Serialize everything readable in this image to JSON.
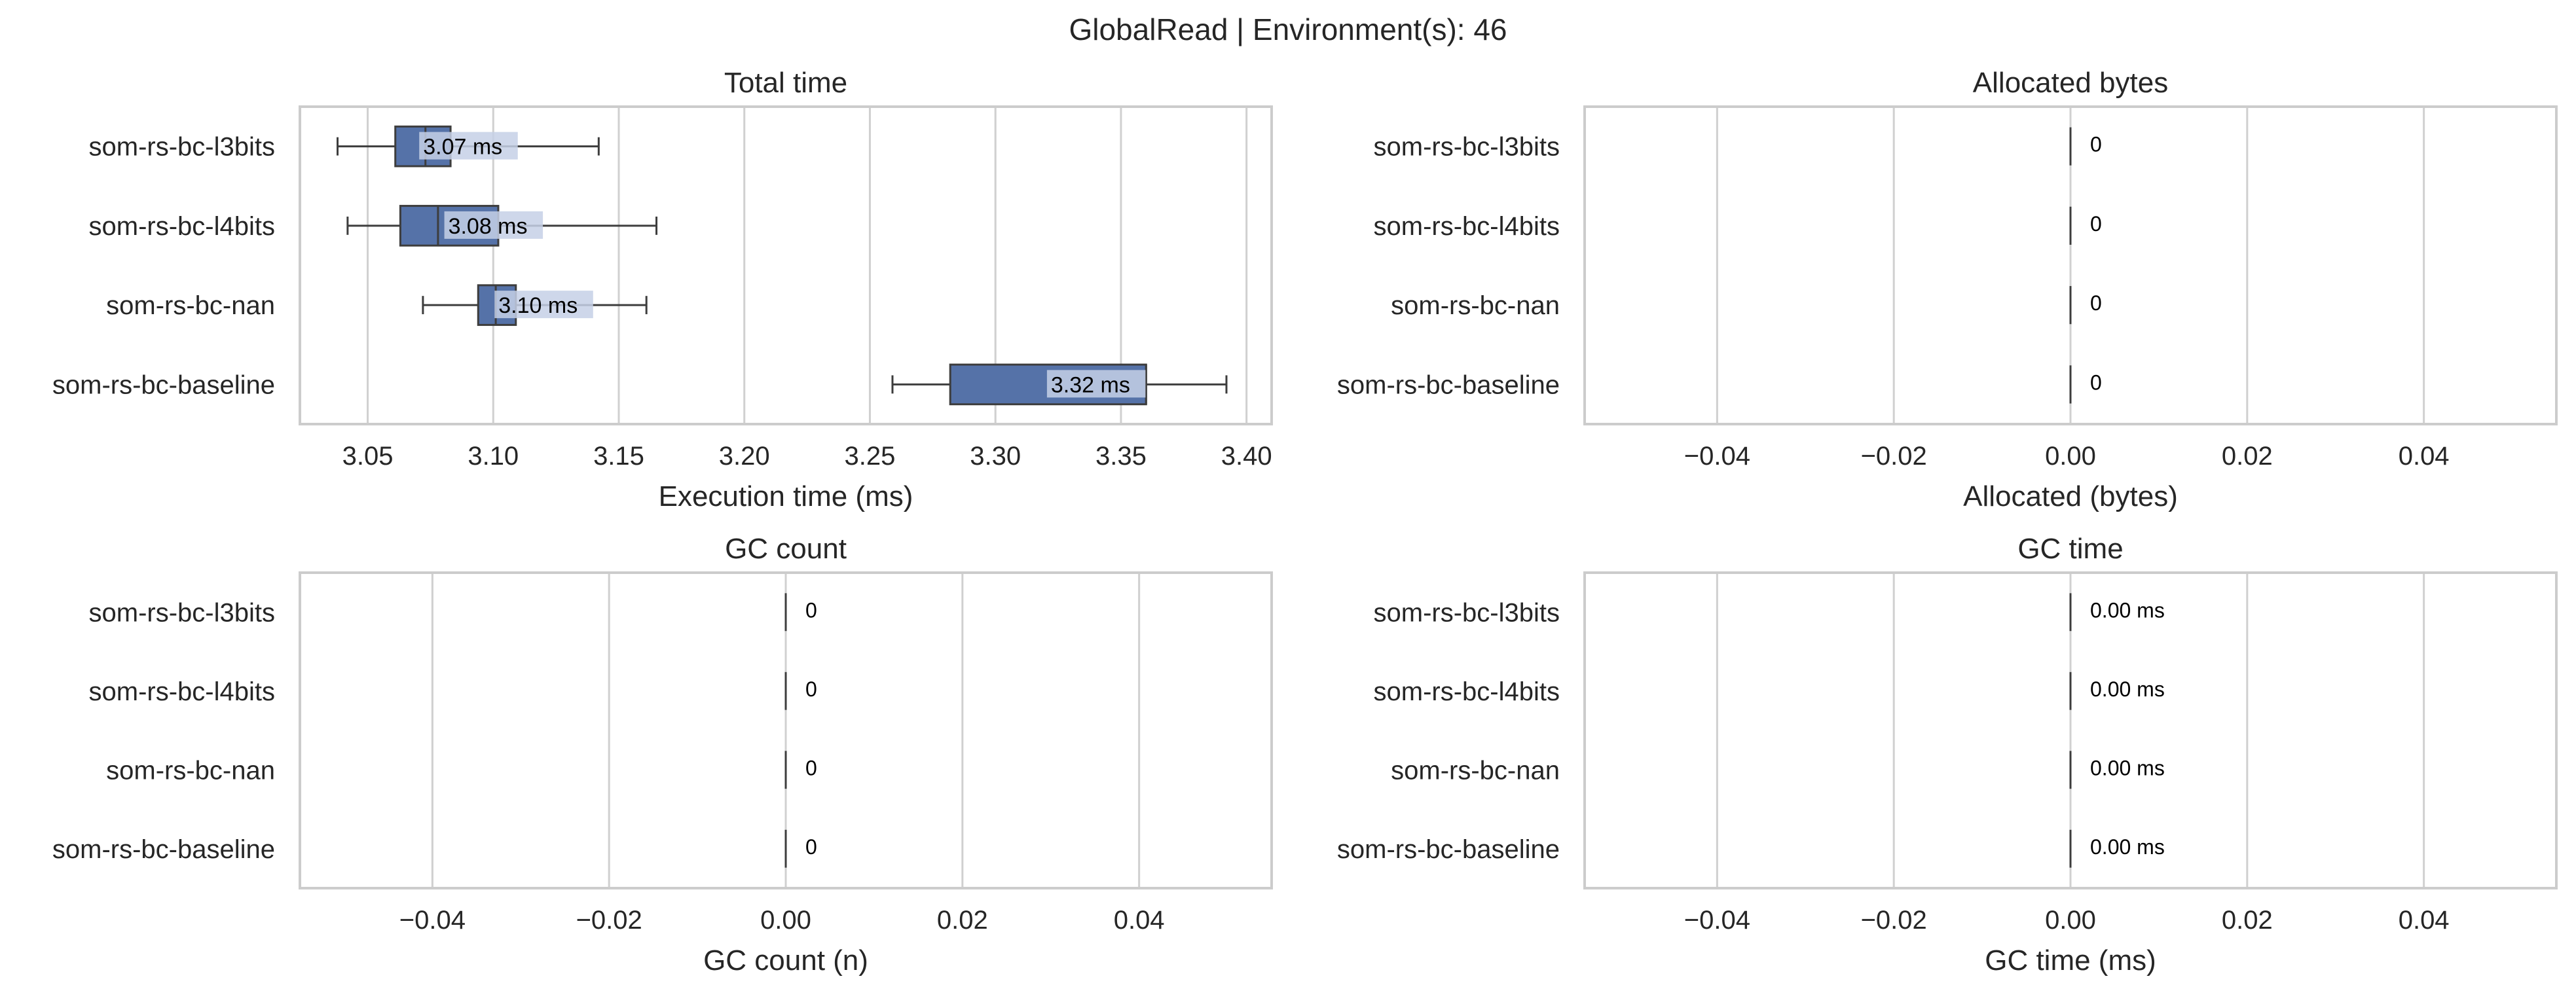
{
  "suptitle": "GlobalRead | Environment(s): 46",
  "colors": {
    "box": "#5572a8",
    "mean_label_bg": "#c5d0e6",
    "grid": "#d0d0d0",
    "frame": "#cccccc",
    "text": "#262626"
  },
  "chart_data": [
    {
      "type": "box",
      "title": "Total time",
      "xlabel": "Execution time (ms)",
      "categories": [
        "som-rs-bc-l3bits",
        "som-rs-bc-l4bits",
        "som-rs-bc-nan",
        "som-rs-bc-baseline"
      ],
      "xlim": [
        3.023,
        3.41
      ],
      "xticks": [
        3.05,
        3.1,
        3.15,
        3.2,
        3.25,
        3.3,
        3.35,
        3.4
      ],
      "xtick_labels": [
        "3.05",
        "3.10",
        "3.15",
        "3.20",
        "3.25",
        "3.30",
        "3.35",
        "3.40"
      ],
      "grid": "x",
      "boxes": [
        {
          "whisker_low": 3.038,
          "q1": 3.061,
          "median": 3.073,
          "q3": 3.083,
          "whisker_high": 3.142,
          "mean": 3.07,
          "label": "3.07 ms"
        },
        {
          "whisker_low": 3.042,
          "q1": 3.063,
          "median": 3.078,
          "q3": 3.102,
          "whisker_high": 3.165,
          "mean": 3.08,
          "label": "3.08 ms"
        },
        {
          "whisker_low": 3.072,
          "q1": 3.094,
          "median": 3.101,
          "q3": 3.109,
          "whisker_high": 3.161,
          "mean": 3.1,
          "label": "3.10 ms"
        },
        {
          "whisker_low": 3.259,
          "q1": 3.282,
          "median": 3.36,
          "q3": 3.36,
          "whisker_high": 3.392,
          "mean": 3.32,
          "label": "3.32 ms"
        }
      ]
    },
    {
      "type": "box",
      "title": "Allocated bytes",
      "xlabel": "Allocated (bytes)",
      "categories": [
        "som-rs-bc-l3bits",
        "som-rs-bc-l4bits",
        "som-rs-bc-nan",
        "som-rs-bc-baseline"
      ],
      "xlim": [
        -0.055,
        0.055
      ],
      "xticks": [
        -0.04,
        -0.02,
        0.0,
        0.02,
        0.04
      ],
      "xtick_labels": [
        "−0.04",
        "−0.02",
        "0.00",
        "0.02",
        "0.04"
      ],
      "grid": "x",
      "boxes": [
        {
          "value": 0,
          "label": "0"
        },
        {
          "value": 0,
          "label": "0"
        },
        {
          "value": 0,
          "label": "0"
        },
        {
          "value": 0,
          "label": "0"
        }
      ]
    },
    {
      "type": "box",
      "title": "GC count",
      "xlabel": "GC count (n)",
      "categories": [
        "som-rs-bc-l3bits",
        "som-rs-bc-l4bits",
        "som-rs-bc-nan",
        "som-rs-bc-baseline"
      ],
      "xlim": [
        -0.055,
        0.055
      ],
      "xticks": [
        -0.04,
        -0.02,
        0.0,
        0.02,
        0.04
      ],
      "xtick_labels": [
        "−0.04",
        "−0.02",
        "0.00",
        "0.02",
        "0.04"
      ],
      "grid": "x",
      "boxes": [
        {
          "value": 0,
          "label": "0"
        },
        {
          "value": 0,
          "label": "0"
        },
        {
          "value": 0,
          "label": "0"
        },
        {
          "value": 0,
          "label": "0"
        }
      ]
    },
    {
      "type": "box",
      "title": "GC time",
      "xlabel": "GC time (ms)",
      "categories": [
        "som-rs-bc-l3bits",
        "som-rs-bc-l4bits",
        "som-rs-bc-nan",
        "som-rs-bc-baseline"
      ],
      "xlim": [
        -0.055,
        0.055
      ],
      "xticks": [
        -0.04,
        -0.02,
        0.0,
        0.02,
        0.04
      ],
      "xtick_labels": [
        "−0.04",
        "−0.02",
        "0.00",
        "0.02",
        "0.04"
      ],
      "grid": "x",
      "boxes": [
        {
          "value": 0,
          "label": "0.00 ms"
        },
        {
          "value": 0,
          "label": "0.00 ms"
        },
        {
          "value": 0,
          "label": "0.00 ms"
        },
        {
          "value": 0,
          "label": "0.00 ms"
        }
      ]
    }
  ]
}
